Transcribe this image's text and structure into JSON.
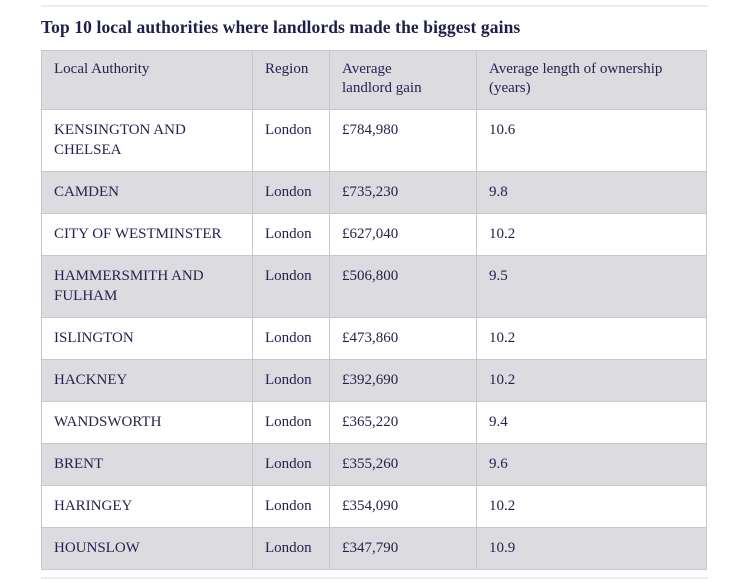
{
  "chart_data": {
    "type": "table",
    "title": "Top 10 local authorities where landlords made the biggest gains",
    "columns": [
      "Local Authority",
      "Region",
      "Average landlord gain",
      "Average length of ownership (years)"
    ],
    "rows": [
      {
        "authority": "KENSINGTON AND CHELSEA",
        "region": "London",
        "gain": "£784,980",
        "ownership": "10.6"
      },
      {
        "authority": "CAMDEN",
        "region": "London",
        "gain": "£735,230",
        "ownership": "9.8"
      },
      {
        "authority": "CITY OF WESTMINSTER",
        "region": "London",
        "gain": "£627,040",
        "ownership": "10.2"
      },
      {
        "authority": "HAMMERSMITH AND FULHAM",
        "region": "London",
        "gain": "£506,800",
        "ownership": "9.5"
      },
      {
        "authority": "ISLINGTON",
        "region": "London",
        "gain": "£473,860",
        "ownership": "10.2"
      },
      {
        "authority": "HACKNEY",
        "region": "London",
        "gain": "£392,690",
        "ownership": "10.2"
      },
      {
        "authority": "WANDSWORTH",
        "region": "London",
        "gain": "£365,220",
        "ownership": "9.4"
      },
      {
        "authority": "BRENT",
        "region": "London",
        "gain": "£355,260",
        "ownership": "9.6"
      },
      {
        "authority": "HARINGEY",
        "region": "London",
        "gain": "£354,090",
        "ownership": "10.2"
      },
      {
        "authority": "HOUNSLOW",
        "region": "London",
        "gain": "£347,790",
        "ownership": "10.9"
      }
    ]
  },
  "colors": {
    "text_navy": "#23234e",
    "title_navy": "#1e1e4b",
    "row_stripe": "#dbdbe0",
    "grid_line": "#c7c7cc",
    "page_rule": "#ededed"
  }
}
